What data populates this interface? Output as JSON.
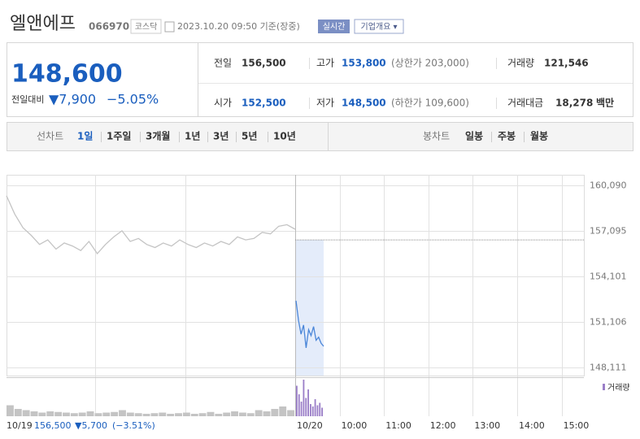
{
  "header": {
    "name": "엘앤에프",
    "code": "066970",
    "market": "코스닥",
    "timestamp": "2023.10.20 09:50 기준(장중)",
    "realtime": "실시간",
    "overview": "기업개요 ▾"
  },
  "summary": {
    "price": "148,600",
    "change_label": "전일대비",
    "change": "▼7,900",
    "change_pct": "−5.05%",
    "rows": [
      [
        {
          "label": "전일",
          "value": "156,500"
        },
        {
          "label": "고가",
          "value": "153,800",
          "extra": "(상한가 203,000)"
        },
        {
          "label": "거래량",
          "value": "121,546"
        }
      ],
      [
        {
          "label": "시가",
          "value": "152,500"
        },
        {
          "label": "저가",
          "value": "148,500",
          "extra": "(하한가 109,600)"
        },
        {
          "label": "거래대금",
          "value": "18,278",
          "unit": "백만"
        }
      ]
    ]
  },
  "tabs": {
    "line_label": "선차트",
    "line": [
      "1일",
      "1주일",
      "3개월",
      "1년",
      "3년",
      "5년",
      "10년"
    ],
    "candle_label": "봉차트",
    "candle": [
      "일봉",
      "주봉",
      "월봉"
    ]
  },
  "chart_data": {
    "type": "line",
    "ylim": [
      148111,
      160090
    ],
    "yticks": [
      {
        "value": 160090,
        "label": "160,090"
      },
      {
        "value": 157095,
        "label": "157,095"
      },
      {
        "value": 154101,
        "label": "154,101"
      },
      {
        "value": 151106,
        "label": "151,106"
      },
      {
        "value": 148111,
        "label": "148,111"
      }
    ],
    "xtick_labels": [
      "10/19",
      "10/20",
      "10:00",
      "11:00",
      "12:00",
      "13:00",
      "14:00",
      "15:00"
    ],
    "baseline": 156500,
    "series": [
      {
        "color": "#c4c4c4",
        "values": [
          159400,
          158200,
          157300,
          156800,
          156200,
          156500,
          155900,
          156300,
          156100,
          155800,
          156400,
          155600,
          156200,
          156700,
          157100,
          156400,
          156600,
          156200,
          156000,
          156300,
          156100,
          156500,
          156200,
          156000,
          156300,
          156100,
          156400,
          156200,
          156700,
          156500,
          156600,
          157000,
          156900,
          157400,
          157500,
          157200
        ]
      },
      {
        "color": "#4a86d8",
        "values": [
          152500,
          151200,
          150300,
          150900,
          149400,
          150600,
          150200,
          150800,
          149900,
          150100,
          149700,
          149500
        ]
      }
    ]
  },
  "volume": {
    "label": "거래량",
    "series": [
      {
        "color": "#c4c4c4",
        "values": [
          9000,
          6000,
          5000,
          4000,
          3000,
          4000,
          3500,
          3000,
          2500,
          3000,
          4000,
          2500,
          3000,
          3500,
          5000,
          3000,
          2500,
          2000,
          2500,
          3000,
          2000,
          2500,
          3000,
          2000,
          2500,
          3500,
          2000,
          3000,
          4000,
          3000,
          2500,
          5000,
          4000,
          6000,
          8000,
          5000
        ]
      },
      {
        "color": "#9b7fc8",
        "values": [
          25000,
          18000,
          12000,
          30000,
          15000,
          22000,
          10000,
          8000,
          14000,
          9000,
          11000,
          7000
        ]
      }
    ]
  },
  "footer": {
    "close": "156,500",
    "change": "▼5,700",
    "change_pct": "(−3.51%)"
  }
}
